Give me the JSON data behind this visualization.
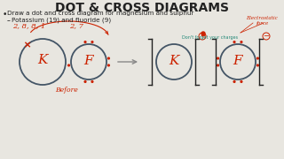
{
  "title": "DOT & CROSS DIAGRAMS",
  "title_fontsize": 10,
  "bg_color": "#e8e6e0",
  "bullet1": "Draw a dot and cross diagram for magnesium and sulphur",
  "bullet2": "Potassium (19) and fluoride (9)",
  "handwritten_K_config": "2, 8, 8, 1",
  "handwritten_F_config": "2, 7",
  "annotation_right": "Electrostatic\nforce",
  "annotation_mid": "Don't forget your charges",
  "label_before": "Before",
  "label_K": "K",
  "label_F": "F",
  "red_color": "#cc2200",
  "teal_color": "#228877",
  "circle_color": "#445566",
  "text_color": "#222222",
  "arrow_color": "#888888"
}
